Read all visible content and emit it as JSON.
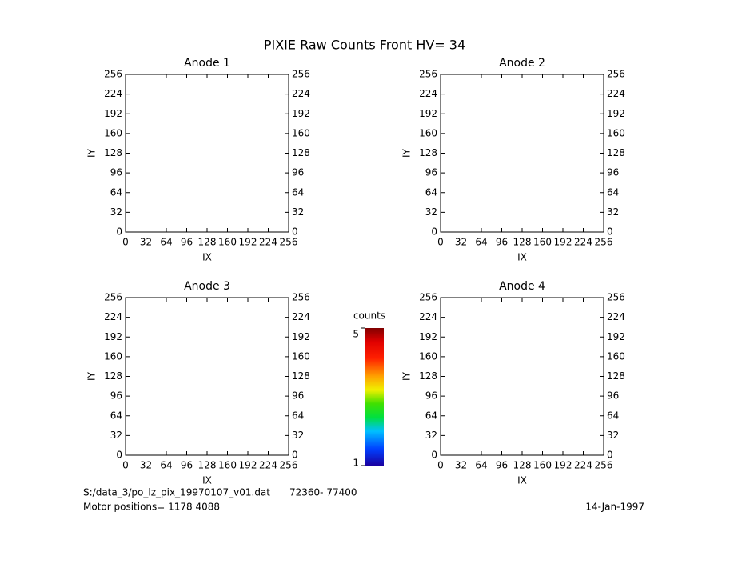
{
  "title": "PIXIE Raw Counts Front HV= 34",
  "chart_data": [
    {
      "type": "heatmap",
      "title": "Anode 1",
      "xlabel": "IX",
      "ylabel": "IY",
      "xlim": [
        0,
        256
      ],
      "ylim": [
        0,
        256
      ],
      "xticks": [
        0,
        32,
        64,
        96,
        128,
        160,
        192,
        224,
        256
      ],
      "yticks": [
        0,
        32,
        64,
        96,
        128,
        160,
        192,
        224,
        256
      ]
    },
    {
      "type": "heatmap",
      "title": "Anode 2",
      "xlabel": "IX",
      "ylabel": "IY",
      "xlim": [
        0,
        256
      ],
      "ylim": [
        0,
        256
      ],
      "xticks": [
        0,
        32,
        64,
        96,
        128,
        160,
        192,
        224,
        256
      ],
      "yticks": [
        0,
        32,
        64,
        96,
        128,
        160,
        192,
        224,
        256
      ]
    },
    {
      "type": "heatmap",
      "title": "Anode 3",
      "xlabel": "IX",
      "ylabel": "IY",
      "xlim": [
        0,
        256
      ],
      "ylim": [
        0,
        256
      ],
      "xticks": [
        0,
        32,
        64,
        96,
        128,
        160,
        192,
        224,
        256
      ],
      "yticks": [
        0,
        32,
        64,
        96,
        128,
        160,
        192,
        224,
        256
      ]
    },
    {
      "type": "heatmap",
      "title": "Anode 4",
      "xlabel": "IX",
      "ylabel": "IY",
      "xlim": [
        0,
        256
      ],
      "ylim": [
        0,
        256
      ],
      "xticks": [
        0,
        32,
        64,
        96,
        128,
        160,
        192,
        224,
        256
      ],
      "yticks": [
        0,
        32,
        64,
        96,
        128,
        160,
        192,
        224,
        256
      ]
    }
  ],
  "colorbar": {
    "label": "counts",
    "lim": [
      1,
      5
    ],
    "ticks": [
      1,
      5
    ]
  },
  "footer": {
    "file": "S:/data_3/po_lz_pix_19970107_v01.dat",
    "range": "72360- 77400",
    "motor": "Motor positions= 1178 4088",
    "date": "14-Jan-1997"
  }
}
